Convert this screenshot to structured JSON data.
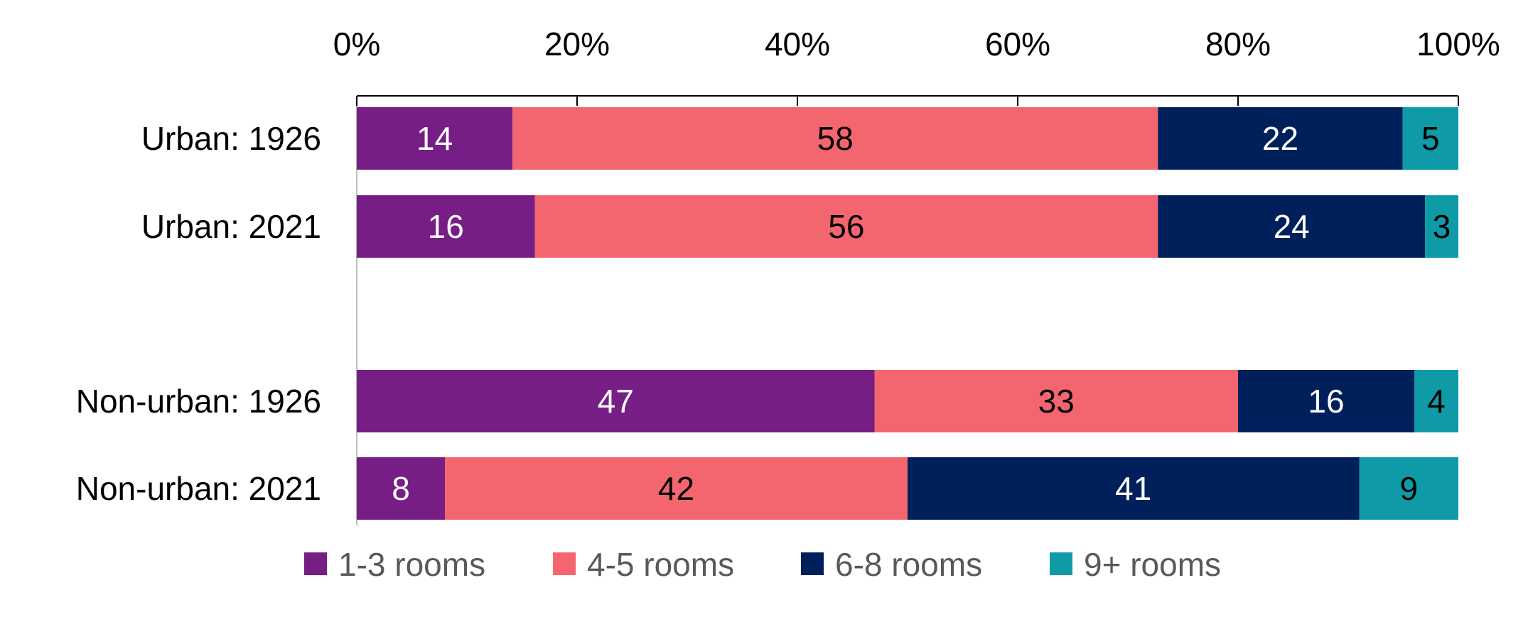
{
  "chart_data": {
    "type": "bar",
    "orientation": "horizontal",
    "stacked": true,
    "normalized": true,
    "title": "",
    "xlabel": "",
    "ylabel": "",
    "xlim": [
      0,
      100
    ],
    "x_tick_labels": [
      "0%",
      "20%",
      "40%",
      "60%",
      "80%",
      "100%"
    ],
    "x_tick_values": [
      0,
      20,
      40,
      60,
      80,
      100
    ],
    "x_axis_position": "top",
    "grid": false,
    "legend_position": "bottom",
    "categories": [
      "Urban: 1926",
      "Urban: 2021",
      "Non-urban: 1926",
      "Non-urban: 2021"
    ],
    "series": [
      {
        "name": "1-3 rooms",
        "color": "#761D86",
        "label_color": "#ffffff",
        "values": [
          14,
          16,
          47,
          8
        ]
      },
      {
        "name": "4-5 rooms",
        "color": "#F4666F",
        "label_color": "#000000",
        "values": [
          58,
          56,
          33,
          42
        ]
      },
      {
        "name": "6-8 rooms",
        "color": "#00205C",
        "label_color": "#ffffff",
        "values": [
          22,
          24,
          16,
          41
        ]
      },
      {
        "name": "9+ rooms",
        "color": "#0E9AA7",
        "label_color": "#000000",
        "values": [
          5,
          3,
          4,
          9
        ]
      }
    ]
  }
}
